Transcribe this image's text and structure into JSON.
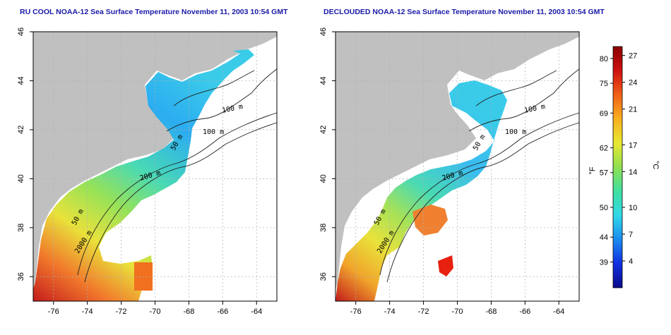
{
  "panels": [
    {
      "title": "RU COOL NOAA-12 Sea Surface Temperature November 11, 2003 10:54 GMT",
      "contour_labels": [
        "100 m",
        "100 m",
        "50 m",
        "200 m",
        "50 m",
        "2000 m"
      ]
    },
    {
      "title": "DECLOUDED NOAA-12 Sea Surface Temperature November 11, 2003 10:54 GMT",
      "contour_labels": [
        "100 m",
        "100 m",
        "50 m",
        "200 m",
        "50 m",
        "2000 m"
      ]
    }
  ],
  "axes": {
    "lon_ticks": [
      "-76",
      "-74",
      "-72",
      "-70",
      "-68",
      "-66",
      "-64"
    ],
    "lat_ticks": [
      "46",
      "44",
      "42",
      "40",
      "38",
      "36"
    ],
    "lon_range": [
      -77.2,
      -62.8
    ],
    "lat_range": [
      35.0,
      46.0
    ]
  },
  "colorbar": {
    "unit_left": "°F",
    "unit_right": "°C",
    "fahrenheit_ticks": [
      "80",
      "75",
      "69",
      "62",
      "57",
      "50",
      "44",
      "39"
    ],
    "celsius_ticks": [
      "27",
      "24",
      "21",
      "17",
      "14",
      "10",
      "7",
      "4"
    ],
    "range_c": [
      1,
      28
    ],
    "colors": [
      "#0a0a8c",
      "#1030e0",
      "#1a8cf0",
      "#30d8e8",
      "#40e0a0",
      "#90e050",
      "#e8e830",
      "#f8b020",
      "#f06018",
      "#d01010",
      "#8a0000"
    ]
  },
  "colors": {
    "land": "#c0c0c0",
    "grid": "#b0b0b0",
    "title": "#1a1aa8"
  }
}
